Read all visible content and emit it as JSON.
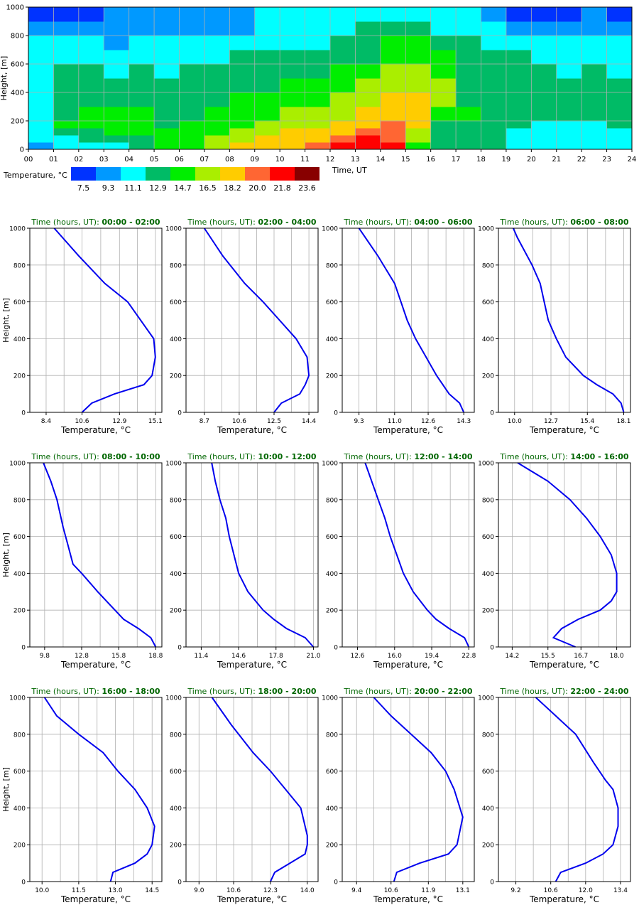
{
  "heatmap": {
    "ylabel": "Height, [m]",
    "xlabel": "Time, UT",
    "xticks": [
      "00",
      "01",
      "02",
      "03",
      "04",
      "05",
      "06",
      "07",
      "08",
      "09",
      "10",
      "11",
      "12",
      "13",
      "14",
      "15",
      "16",
      "17",
      "18",
      "19",
      "20",
      "21",
      "22",
      "23",
      "24"
    ],
    "yticks": [
      "0",
      "200",
      "400",
      "600",
      "800",
      "1000"
    ],
    "colorbar_title": "Temperature, °C",
    "colorbar_labels": [
      "7.5",
      "9.3",
      "11.1",
      "12.9",
      "14.7",
      "16.5",
      "18.2",
      "20.0",
      "21.8",
      "23.6"
    ],
    "colors": [
      "#0033ff",
      "#0099ff",
      "#00ffff",
      "#00bb66",
      "#00ee00",
      "#aaee00",
      "#ffcc00",
      "#ff6633",
      "#ff0000",
      "#880000"
    ]
  },
  "profile_common": {
    "title_prefix": "Time (hours, UT): ",
    "xlabel": "Temperature, °C",
    "ylabel": "Height, [m]",
    "yticks": [
      "0",
      "200",
      "400",
      "600",
      "800",
      "1000"
    ],
    "line_color": "#0000ee",
    "title_color": "#006600"
  },
  "chart_data": [
    {
      "type": "heatmap",
      "title": "",
      "xlabel": "Time, UT",
      "ylabel": "Height, [m]",
      "xlim": [
        0,
        24
      ],
      "ylim": [
        0,
        1000
      ],
      "colorbar_levels": [
        7.5,
        9.3,
        11.1,
        12.9,
        14.7,
        16.5,
        18.2,
        20.0,
        21.8,
        23.6
      ],
      "x_hours": [
        0,
        1,
        2,
        3,
        4,
        5,
        6,
        7,
        8,
        9,
        10,
        11,
        12,
        13,
        14,
        15,
        16,
        17,
        18,
        19,
        20,
        21,
        22,
        23
      ],
      "y_heights": [
        0,
        50,
        100,
        150,
        200,
        300,
        400,
        500,
        600,
        700,
        800,
        900
      ],
      "values": [
        [
          9.3,
          11.1,
          11.1,
          11.1,
          11.1,
          11.1,
          11.1,
          11.1,
          11.1,
          11.1,
          9.3,
          7.5
        ],
        [
          11.1,
          11.1,
          12.9,
          14.7,
          12.9,
          12.9,
          12.9,
          12.9,
          11.1,
          11.1,
          9.3,
          7.5
        ],
        [
          11.1,
          12.9,
          12.9,
          14.7,
          14.7,
          12.9,
          12.9,
          12.9,
          11.1,
          11.1,
          9.3,
          7.5
        ],
        [
          11.1,
          12.9,
          14.7,
          14.7,
          14.7,
          12.9,
          12.9,
          11.1,
          11.1,
          9.3,
          9.3,
          9.3
        ],
        [
          12.9,
          12.9,
          14.7,
          14.7,
          14.7,
          12.9,
          12.9,
          12.9,
          11.1,
          11.1,
          9.3,
          9.3
        ],
        [
          14.7,
          14.7,
          14.7,
          12.9,
          12.9,
          12.9,
          12.9,
          11.1,
          11.1,
          11.1,
          9.3,
          9.3
        ],
        [
          14.7,
          14.7,
          14.7,
          14.7,
          12.9,
          12.9,
          12.9,
          12.9,
          11.1,
          11.1,
          9.3,
          9.3
        ],
        [
          16.5,
          16.5,
          14.7,
          14.7,
          14.7,
          12.9,
          12.9,
          12.9,
          11.1,
          11.1,
          9.3,
          9.3
        ],
        [
          18.2,
          16.5,
          16.5,
          14.7,
          14.7,
          14.7,
          12.9,
          12.9,
          12.9,
          11.1,
          9.3,
          9.3
        ],
        [
          18.2,
          18.2,
          16.5,
          16.5,
          14.7,
          14.7,
          12.9,
          12.9,
          12.9,
          11.1,
          11.1,
          11.1
        ],
        [
          18.2,
          18.2,
          18.2,
          16.5,
          16.5,
          14.7,
          14.7,
          12.9,
          12.9,
          11.1,
          11.1,
          11.1
        ],
        [
          20.0,
          18.2,
          18.2,
          16.5,
          16.5,
          14.7,
          14.7,
          12.9,
          12.9,
          11.1,
          11.1,
          11.1
        ],
        [
          21.8,
          20.0,
          18.2,
          18.2,
          16.5,
          16.5,
          14.7,
          14.7,
          12.9,
          12.9,
          11.1,
          11.1
        ],
        [
          21.8,
          21.8,
          20.0,
          18.2,
          18.2,
          16.5,
          16.5,
          14.7,
          12.9,
          12.9,
          12.9,
          11.1
        ],
        [
          21.8,
          20.0,
          20.0,
          20.0,
          18.2,
          18.2,
          16.5,
          16.5,
          14.7,
          14.7,
          12.9,
          11.1
        ],
        [
          14.7,
          16.5,
          16.5,
          18.2,
          18.2,
          18.2,
          16.5,
          16.5,
          14.7,
          14.7,
          12.9,
          11.1
        ],
        [
          12.9,
          12.9,
          12.9,
          12.9,
          14.7,
          16.5,
          16.5,
          14.7,
          14.7,
          12.9,
          11.1,
          11.1
        ],
        [
          12.9,
          12.9,
          12.9,
          12.9,
          14.7,
          12.9,
          12.9,
          12.9,
          12.9,
          12.9,
          11.1,
          11.1
        ],
        [
          12.9,
          12.9,
          12.9,
          12.9,
          12.9,
          12.9,
          12.9,
          12.9,
          12.9,
          11.1,
          11.1,
          9.3
        ],
        [
          11.1,
          11.1,
          11.1,
          12.9,
          12.9,
          12.9,
          12.9,
          12.9,
          12.9,
          11.1,
          9.3,
          7.5
        ],
        [
          11.1,
          11.1,
          11.1,
          11.1,
          12.9,
          12.9,
          12.9,
          12.9,
          11.1,
          11.1,
          9.3,
          7.5
        ],
        [
          11.1,
          11.1,
          11.1,
          11.1,
          12.9,
          12.9,
          12.9,
          11.1,
          11.1,
          11.1,
          9.3,
          7.5
        ],
        [
          11.1,
          11.1,
          11.1,
          11.1,
          12.9,
          12.9,
          12.9,
          12.9,
          11.1,
          11.1,
          9.3,
          9.3
        ],
        [
          11.1,
          11.1,
          11.1,
          12.9,
          12.9,
          12.9,
          12.9,
          11.1,
          11.1,
          11.1,
          9.3,
          7.5
        ]
      ]
    },
    {
      "type": "line",
      "time_range": "00:00 - 02:00",
      "xticks": [
        "8.4",
        "10.6",
        "12.9",
        "15.1"
      ],
      "xlim": [
        7.4,
        15.5
      ],
      "ylim": [
        0,
        1000
      ],
      "series": [
        {
          "x": [
            10.6,
            11.2,
            12.6,
            14.4,
            14.9,
            15.1,
            15.0,
            14.6,
            13.4,
            12.0,
            10.4,
            8.9
          ],
          "y": [
            0,
            50,
            100,
            150,
            200,
            300,
            400,
            450,
            600,
            700,
            850,
            1000
          ]
        }
      ]
    },
    {
      "type": "line",
      "time_range": "02:00 - 04:00",
      "xticks": [
        "8.7",
        "10.6",
        "12.5",
        "14.4"
      ],
      "xlim": [
        7.7,
        14.9
      ],
      "ylim": [
        0,
        1000
      ],
      "series": [
        {
          "x": [
            12.5,
            12.9,
            13.9,
            14.2,
            14.4,
            14.3,
            13.7,
            12.8,
            11.9,
            10.9,
            9.7,
            8.7
          ],
          "y": [
            0,
            50,
            100,
            150,
            200,
            300,
            400,
            500,
            600,
            700,
            850,
            1000
          ]
        }
      ]
    },
    {
      "type": "line",
      "time_range": "04:00 - 06:00",
      "xticks": [
        "9.3",
        "11.0",
        "12.6",
        "14.3"
      ],
      "xlim": [
        8.5,
        14.8
      ],
      "ylim": [
        0,
        1000
      ],
      "series": [
        {
          "x": [
            14.3,
            14.1,
            13.6,
            13.3,
            13.0,
            12.5,
            12.0,
            11.6,
            11.3,
            11.0,
            10.2,
            9.3
          ],
          "y": [
            0,
            50,
            100,
            150,
            200,
            300,
            400,
            500,
            600,
            700,
            850,
            1000
          ]
        }
      ]
    },
    {
      "type": "line",
      "time_range": "06:00 - 08:00",
      "xticks": [
        "10.0",
        "12.7",
        "15.4",
        "18.1"
      ],
      "xlim": [
        8.8,
        18.6
      ],
      "ylim": [
        0,
        1000
      ],
      "series": [
        {
          "x": [
            18.1,
            17.9,
            17.3,
            16.1,
            15.1,
            13.8,
            13.1,
            12.5,
            12.2,
            11.9,
            11.3,
            10.2,
            9.9
          ],
          "y": [
            0,
            50,
            100,
            150,
            200,
            300,
            400,
            500,
            600,
            700,
            800,
            950,
            1000
          ]
        }
      ]
    },
    {
      "type": "line",
      "time_range": "08:00 - 10:00",
      "xticks": [
        "9.8",
        "12.8",
        "15.8",
        "18.8"
      ],
      "xlim": [
        8.6,
        19.3
      ],
      "ylim": [
        0,
        1000
      ],
      "series": [
        {
          "x": [
            18.8,
            18.4,
            17.4,
            16.2,
            15.5,
            14.1,
            12.8,
            12.1,
            11.7,
            11.3,
            10.8,
            10.3,
            9.7
          ],
          "y": [
            0,
            50,
            100,
            150,
            200,
            300,
            400,
            450,
            550,
            650,
            800,
            900,
            1000
          ]
        }
      ]
    },
    {
      "type": "line",
      "time_range": "10:00 - 12:00",
      "xticks": [
        "11.4",
        "14.6",
        "17.8",
        "21.0"
      ],
      "xlim": [
        10.1,
        21.4
      ],
      "ylim": [
        0,
        1000
      ],
      "series": [
        {
          "x": [
            21.0,
            20.3,
            18.7,
            17.6,
            16.7,
            15.4,
            14.6,
            14.2,
            13.8,
            13.5,
            13.0,
            12.6,
            12.3
          ],
          "y": [
            0,
            50,
            100,
            150,
            200,
            300,
            400,
            500,
            600,
            700,
            800,
            900,
            1000
          ]
        }
      ]
    },
    {
      "type": "line",
      "time_range": "12:00 - 14:00",
      "xticks": [
        "12.6",
        "16.0",
        "19.4",
        "22.8"
      ],
      "xlim": [
        11.2,
        23.3
      ],
      "ylim": [
        0,
        1000
      ],
      "series": [
        {
          "x": [
            22.8,
            22.4,
            21.0,
            19.8,
            19.0,
            17.7,
            16.8,
            16.2,
            15.6,
            15.1,
            14.5,
            13.9,
            13.3
          ],
          "y": [
            0,
            50,
            100,
            150,
            200,
            300,
            400,
            500,
            600,
            700,
            800,
            900,
            1000
          ]
        }
      ]
    },
    {
      "type": "line",
      "time_range": "14:00 - 16:00",
      "xticks": [
        "14.2",
        "15.5",
        "16.7",
        "18.0"
      ],
      "xlim": [
        13.7,
        18.5
      ],
      "ylim": [
        0,
        1000
      ],
      "series": [
        {
          "x": [
            16.5,
            15.7,
            16.0,
            16.6,
            17.4,
            17.8,
            18.0,
            18.0,
            17.8,
            17.4,
            16.9,
            16.3,
            15.5,
            14.4
          ],
          "y": [
            0,
            50,
            100,
            150,
            200,
            250,
            300,
            400,
            500,
            600,
            700,
            800,
            900,
            1000
          ]
        }
      ]
    },
    {
      "type": "line",
      "time_range": "16:00 - 18:00",
      "xticks": [
        "10.0",
        "11.5",
        "13.0",
        "14.5"
      ],
      "xlim": [
        9.5,
        14.9
      ],
      "ylim": [
        0,
        1000
      ],
      "series": [
        {
          "x": [
            12.8,
            12.9,
            13.8,
            14.3,
            14.5,
            14.6,
            14.3,
            13.8,
            13.1,
            12.5,
            11.5,
            10.6,
            10.1
          ],
          "y": [
            0,
            50,
            100,
            150,
            200,
            300,
            400,
            500,
            600,
            700,
            800,
            900,
            1000
          ]
        }
      ]
    },
    {
      "type": "line",
      "time_range": "18:00 - 20:00",
      "xticks": [
        "9.0",
        "10.6",
        "12.3",
        "14.0"
      ],
      "xlim": [
        8.4,
        14.5
      ],
      "ylim": [
        0,
        1000
      ],
      "series": [
        {
          "x": [
            12.3,
            12.5,
            13.2,
            13.9,
            14.0,
            14.0,
            13.7,
            13.0,
            12.3,
            11.5,
            10.5,
            9.6
          ],
          "y": [
            0,
            50,
            100,
            150,
            200,
            250,
            400,
            500,
            600,
            700,
            850,
            1000
          ]
        }
      ]
    },
    {
      "type": "line",
      "time_range": "20:00 - 22:00",
      "xticks": [
        "9.4",
        "10.6",
        "11.9",
        "13.1"
      ],
      "xlim": [
        8.9,
        13.5
      ],
      "ylim": [
        0,
        1000
      ],
      "series": [
        {
          "x": [
            10.7,
            10.8,
            11.6,
            12.6,
            12.9,
            13.1,
            13.0,
            12.8,
            12.5,
            12.0,
            11.3,
            10.6,
            10.0
          ],
          "y": [
            0,
            50,
            100,
            150,
            200,
            350,
            400,
            500,
            600,
            700,
            800,
            900,
            1000
          ]
        }
      ]
    },
    {
      "type": "line",
      "time_range": "22:00 - 24:00",
      "xticks": [
        "9.2",
        "10.6",
        "12.0",
        "13.4"
      ],
      "xlim": [
        8.5,
        13.8
      ],
      "ylim": [
        0,
        1000
      ],
      "series": [
        {
          "x": [
            10.8,
            11.0,
            12.0,
            12.7,
            13.1,
            13.3,
            13.3,
            13.1,
            12.8,
            12.3,
            11.6,
            10.8,
            10.0
          ],
          "y": [
            0,
            50,
            100,
            150,
            200,
            300,
            400,
            500,
            550,
            650,
            800,
            900,
            1000
          ]
        }
      ]
    }
  ]
}
